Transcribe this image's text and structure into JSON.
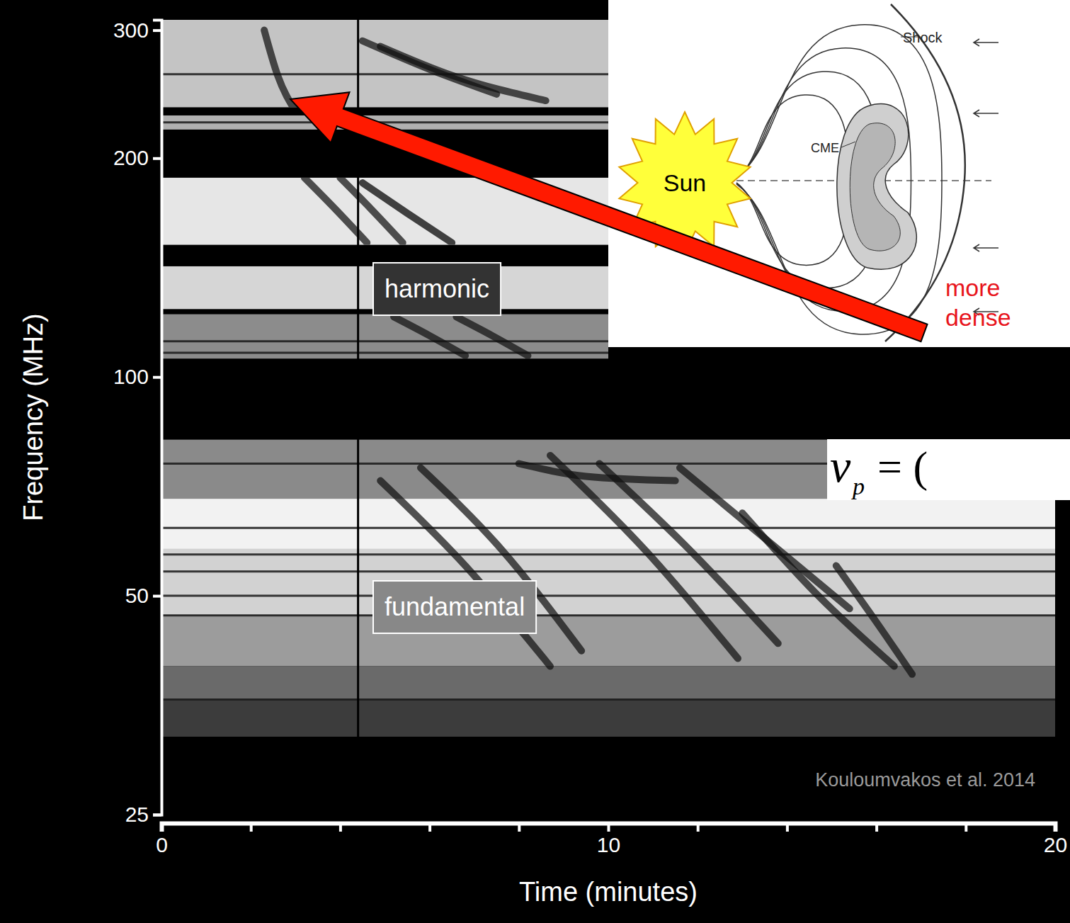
{
  "chart_data": {
    "type": "spectrogram",
    "x_label": "Time (minutes)",
    "y_label": "Frequency (MHz)",
    "log": "y",
    "xlim": [
      0,
      20
    ],
    "xticks": [
      0,
      10,
      20
    ],
    "x_minor_ticks": [
      2,
      4,
      6,
      8,
      12,
      14,
      16,
      18
    ],
    "ylim": [
      25,
      310
    ],
    "yticks": [
      25,
      50,
      100,
      200,
      300
    ],
    "bands": [
      {
        "t": [
          0,
          10
        ],
        "f": [
          235,
          310
        ],
        "color": "#c4c4c4"
      },
      {
        "t": [
          0,
          10
        ],
        "f": [
          219,
          229
        ],
        "color": "#b0b0b0"
      },
      {
        "t": [
          0,
          10
        ],
        "f": [
          152,
          188
        ],
        "color": "#e6e6e6"
      },
      {
        "t": [
          0,
          10
        ],
        "f": [
          124,
          142
        ],
        "color": "#d6d6d6"
      },
      {
        "t": [
          0,
          10
        ],
        "f": [
          106,
          122
        ],
        "color": "#8c8c8c"
      },
      {
        "t": [
          0,
          17.1
        ],
        "f": [
          68,
          82
        ],
        "color": "#8a8a8a"
      },
      {
        "t": [
          0,
          20
        ],
        "f": [
          58,
          68
        ],
        "color": "#f2f2f2"
      },
      {
        "t": [
          0,
          20
        ],
        "f": [
          47,
          58
        ],
        "color": "#d2d2d2"
      },
      {
        "t": [
          0,
          20
        ],
        "f": [
          40,
          47
        ],
        "color": "#9c9c9c"
      },
      {
        "t": [
          0,
          20
        ],
        "f": [
          36,
          40
        ],
        "color": "#6a6a6a"
      },
      {
        "t": [
          0,
          20
        ],
        "f": [
          32,
          36
        ],
        "color": "#3c3c3c"
      }
    ],
    "interference_lines": [
      261,
      224,
      112,
      108,
      76,
      62,
      57,
      54,
      50,
      47,
      36
    ],
    "series": [
      {
        "x": [
          2.3,
          2.6,
          3.0
        ],
        "values": [
          300,
          260,
          232
        ],
        "color": "#111111"
      },
      {
        "x": [
          4.5,
          6.0,
          7.5
        ],
        "values": [
          290,
          265,
          245
        ],
        "color": "#111111"
      },
      {
        "x": [
          4.9,
          6.5,
          8.6
        ],
        "values": [
          285,
          260,
          240
        ],
        "color": "#111111"
      },
      {
        "x": [
          3.2,
          3.9,
          4.6
        ],
        "values": [
          188,
          170,
          153
        ],
        "color": "#111111"
      },
      {
        "x": [
          4.0,
          4.7,
          5.4
        ],
        "values": [
          188,
          170,
          153
        ],
        "color": "#111111"
      },
      {
        "x": [
          4.5,
          5.5,
          6.5
        ],
        "values": [
          185,
          168,
          153
        ],
        "color": "#000000"
      },
      {
        "x": [
          5.2,
          6.0,
          6.8
        ],
        "values": [
          121,
          114,
          107
        ],
        "color": "#111111"
      },
      {
        "x": [
          6.6,
          7.4,
          8.2
        ],
        "values": [
          121,
          114,
          107
        ],
        "color": "#111111"
      },
      {
        "x": [
          4.9,
          6.8,
          8.7
        ],
        "values": [
          72,
          55,
          40
        ],
        "color": "#111111"
      },
      {
        "x": [
          5.8,
          7.6,
          9.4
        ],
        "values": [
          75,
          58,
          42
        ],
        "color": "#111111"
      },
      {
        "x": [
          8.7,
          10.8,
          12.9
        ],
        "values": [
          78,
          58,
          41
        ],
        "color": "#111111"
      },
      {
        "x": [
          9.8,
          11.8,
          13.8
        ],
        "values": [
          76,
          58,
          43
        ],
        "color": "#111111"
      },
      {
        "x": [
          11.6,
          13.5,
          15.4
        ],
        "values": [
          75,
          60,
          48
        ],
        "color": "#111111"
      },
      {
        "x": [
          13.0,
          14.7,
          16.4
        ],
        "values": [
          65,
          50,
          40
        ],
        "color": "#111111"
      },
      {
        "x": [
          15.1,
          16.0,
          16.8
        ],
        "values": [
          55,
          46,
          39
        ],
        "color": "#111111"
      },
      {
        "x": [
          8.0,
          9.5,
          11.5
        ],
        "values": [
          76,
          73,
          72
        ],
        "color": "#111111"
      }
    ],
    "time_marker": 4.4,
    "annotations": [
      "harmonic",
      "fundamental"
    ],
    "credit": "Kouloumvakos et al. 2014",
    "diagram_labels": {
      "sun": "Sun",
      "shock": "Shock",
      "cme": "CME",
      "density": "more dense"
    },
    "equation": {
      "symbol": "ν",
      "subscript": "p",
      "rest": "= ("
    }
  }
}
